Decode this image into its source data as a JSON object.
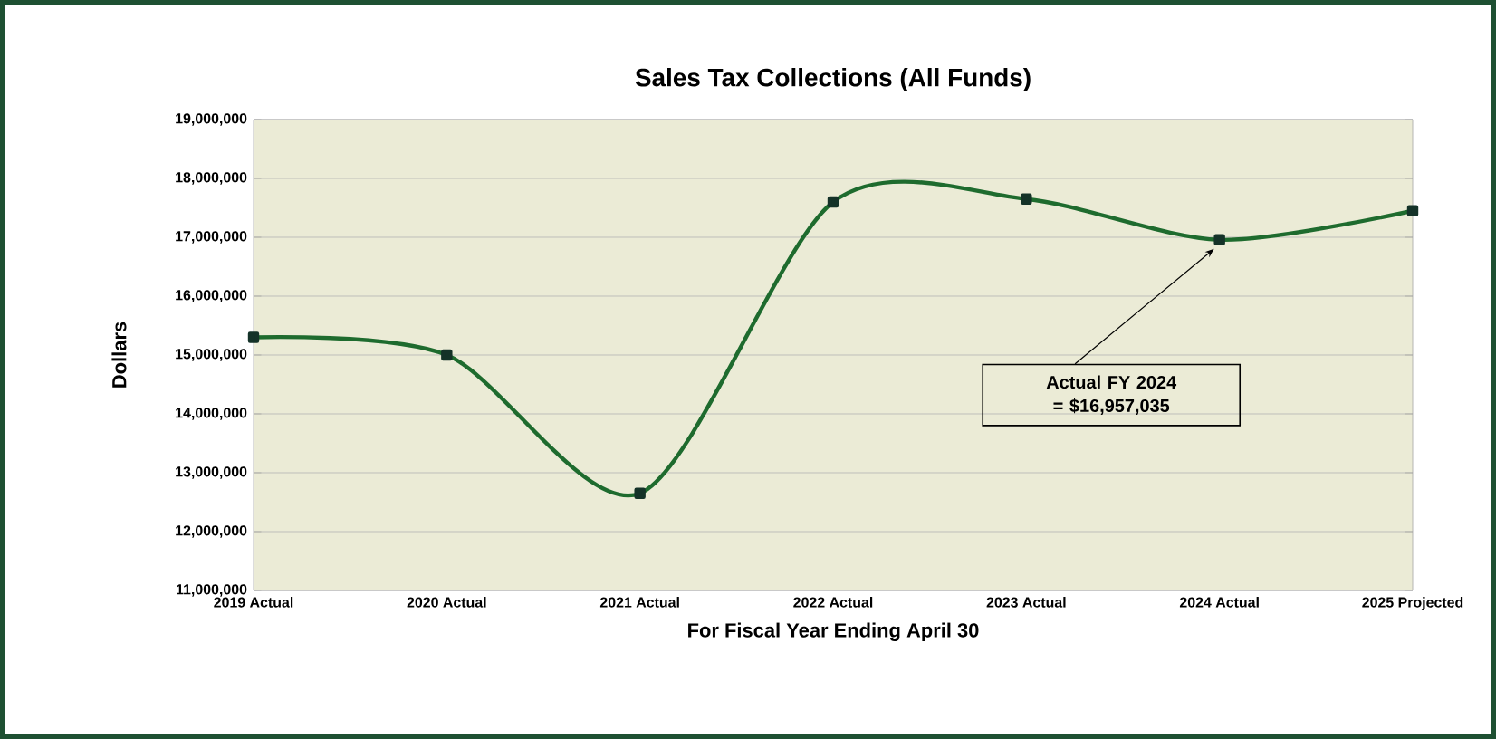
{
  "chart_data": {
    "type": "line",
    "title": "Sales Tax Collections (All Funds)",
    "xlabel": "For Fiscal Year Ending April 30",
    "ylabel": "Dollars",
    "categories": [
      "2019 Actual",
      "2020 Actual",
      "2021 Actual",
      "2022 Actual",
      "2023 Actual",
      "2024 Actual",
      "2025 Projected"
    ],
    "series": [
      {
        "color": "#1e6b2e",
        "values": [
          15300000,
          15000000,
          12650000,
          17600000,
          17650000,
          16957035,
          17450000
        ]
      }
    ],
    "ylim": [
      11000000,
      19000000
    ],
    "yticks": [
      {
        "value": 11000000,
        "label": "11,000,000"
      },
      {
        "value": 12000000,
        "label": "12,000,000"
      },
      {
        "value": 13000000,
        "label": "13,000,000"
      },
      {
        "value": 14000000,
        "label": "14,000,000"
      },
      {
        "value": 15000000,
        "label": "15,000,000"
      },
      {
        "value": 16000000,
        "label": "16,000,000"
      },
      {
        "value": 17000000,
        "label": "17,000,000"
      },
      {
        "value": 18000000,
        "label": "18,000,000"
      },
      {
        "value": 19000000,
        "label": "19,000,000"
      }
    ],
    "grid": "y",
    "marker": "square",
    "line_style": "solid",
    "annotations": [
      {
        "text": "Actual FY 2024 = $16,957,035",
        "x": "2024 Actual",
        "y": 16957035
      }
    ]
  }
}
